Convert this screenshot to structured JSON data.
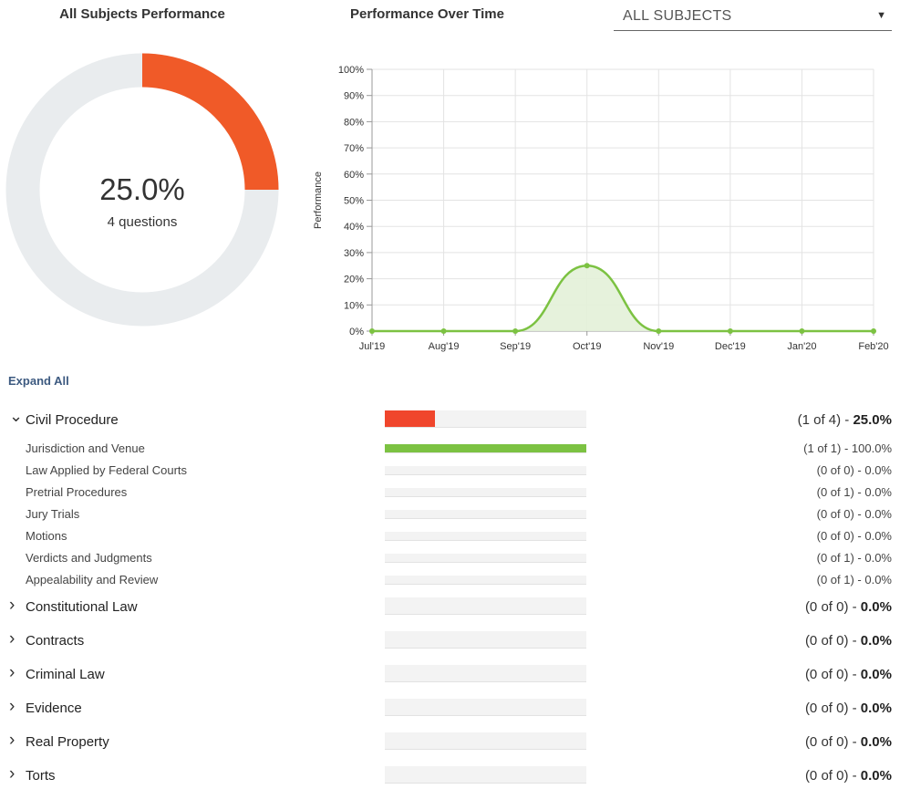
{
  "header": {
    "donut_title": "All Subjects Performance",
    "chart_title": "Performance Over Time",
    "select_value": "ALL SUBJECTS"
  },
  "donut": {
    "percent_label": "25.0%",
    "questions_label": "4 questions",
    "fraction": 0.25,
    "fill_color": "#f05a28",
    "track_color": "#e9ecee"
  },
  "chart_data": {
    "type": "area",
    "ylabel": "Performance",
    "categories": [
      "Jul'19",
      "Aug'19",
      "Sep'19",
      "Oct'19",
      "Nov'19",
      "Dec'19",
      "Jan'20",
      "Feb'20"
    ],
    "values": [
      0,
      0,
      0,
      25,
      0,
      0,
      0,
      0
    ],
    "y_ticks": [
      "0%",
      "10%",
      "20%",
      "30%",
      "40%",
      "50%",
      "60%",
      "70%",
      "80%",
      "90%",
      "100%"
    ],
    "ylim": [
      0,
      100
    ],
    "grid": true,
    "line_color": "#7cc242",
    "area_color": "#e3f1d8"
  },
  "expand_all": "Expand All",
  "subjects": [
    {
      "name": "Civil Procedure",
      "count": "(1 of 4) - ",
      "pct": "25.0%",
      "ratio": 0.25,
      "color": "#f0462c",
      "expanded": true,
      "subtopics": [
        {
          "name": "Jurisdiction and Venue",
          "stat": "(1 of 1) - 100.0%",
          "ratio": 1.0,
          "color": "#7cc242"
        },
        {
          "name": "Law Applied by Federal Courts",
          "stat": "(0 of 0) - 0.0%",
          "ratio": 0
        },
        {
          "name": "Pretrial Procedures",
          "stat": "(0 of 1) - 0.0%",
          "ratio": 0
        },
        {
          "name": "Jury Trials",
          "stat": "(0 of 0) - 0.0%",
          "ratio": 0
        },
        {
          "name": "Motions",
          "stat": "(0 of 0) - 0.0%",
          "ratio": 0
        },
        {
          "name": "Verdicts and Judgments",
          "stat": "(0 of 1) - 0.0%",
          "ratio": 0
        },
        {
          "name": "Appealability and Review",
          "stat": "(0 of 1) - 0.0%",
          "ratio": 0
        }
      ]
    },
    {
      "name": "Constitutional Law",
      "count": "(0 of 0) - ",
      "pct": "0.0%",
      "ratio": 0,
      "expanded": false
    },
    {
      "name": "Contracts",
      "count": "(0 of 0) - ",
      "pct": "0.0%",
      "ratio": 0,
      "expanded": false
    },
    {
      "name": "Criminal Law",
      "count": "(0 of 0) - ",
      "pct": "0.0%",
      "ratio": 0,
      "expanded": false
    },
    {
      "name": "Evidence",
      "count": "(0 of 0) - ",
      "pct": "0.0%",
      "ratio": 0,
      "expanded": false
    },
    {
      "name": "Real Property",
      "count": "(0 of 0) - ",
      "pct": "0.0%",
      "ratio": 0,
      "expanded": false
    },
    {
      "name": "Torts",
      "count": "(0 of 0) - ",
      "pct": "0.0%",
      "ratio": 0,
      "expanded": false
    }
  ]
}
